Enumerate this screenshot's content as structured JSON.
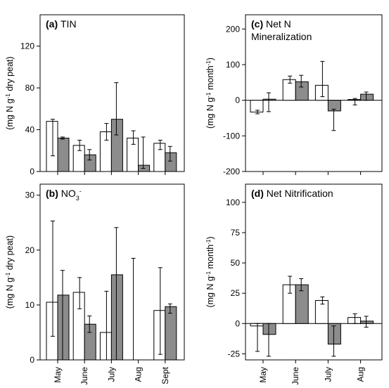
{
  "colors": {
    "white_bar": "#ffffff",
    "grey_bar": "#8c8c8c",
    "axis": "#000000"
  },
  "chart_data": [
    {
      "id": "a",
      "type": "bar",
      "letter": "(a)",
      "title": "TIN",
      "ylabel": "(mg N g-1 dry peat)",
      "ylim": [
        0,
        150
      ],
      "yticks": [
        0,
        40,
        80,
        120
      ],
      "categories": [
        "May",
        "June",
        "July",
        "Aug",
        "Sept"
      ],
      "series": [
        {
          "color": "white",
          "values": [
            48,
            25,
            38,
            32,
            27
          ],
          "err_low": [
            33,
            5,
            8,
            6,
            6
          ],
          "err_high": [
            2,
            5,
            8,
            7,
            3
          ]
        },
        {
          "color": "grey",
          "values": [
            32,
            16,
            50,
            6,
            18
          ],
          "err_low": [
            1,
            5,
            15,
            3,
            8
          ],
          "err_high": [
            1,
            5,
            35,
            27,
            6
          ]
        }
      ]
    },
    {
      "id": "b",
      "type": "bar",
      "letter": "(b)",
      "title": "NO3-",
      "ylabel": "(mg N g-1 dry peat)",
      "ylim": [
        0,
        32
      ],
      "yticks": [
        0,
        10,
        20,
        30
      ],
      "categories": [
        "May",
        "June",
        "July",
        "Aug",
        "Sept"
      ],
      "series": [
        {
          "color": "white",
          "values": [
            10.5,
            12.3,
            5.0,
            0,
            9.0
          ],
          "err_low": [
            6.2,
            3.0,
            5.0,
            0,
            8.0
          ],
          "err_high": [
            14.8,
            2.7,
            7.5,
            18.5,
            7.8
          ]
        },
        {
          "color": "grey",
          "values": [
            11.8,
            6.5,
            15.5,
            0,
            9.7
          ],
          "err_low": [
            11.8,
            1.5,
            15.5,
            0,
            1.2
          ],
          "err_high": [
            4.5,
            1.5,
            8.6,
            0,
            0.5
          ]
        }
      ]
    },
    {
      "id": "c",
      "type": "bar",
      "letter": "(c)",
      "title": "Net N",
      "title_line2": "Mineralization",
      "ylabel": "(mg N g-1 month-1)",
      "ylim": [
        -200,
        240
      ],
      "yticks": [
        -200,
        -100,
        0,
        100,
        200
      ],
      "categories": [
        "May",
        "June",
        "July",
        "Aug"
      ],
      "series": [
        {
          "color": "white",
          "values": [
            -33,
            58,
            42,
            2
          ],
          "err_low": [
            5,
            10,
            32,
            15
          ],
          "err_high": [
            5,
            10,
            67,
            3
          ]
        },
        {
          "color": "grey",
          "values": [
            3,
            52,
            -30,
            17
          ],
          "err_low": [
            35,
            15,
            55,
            17
          ],
          "err_high": [
            18,
            18,
            5,
            6
          ]
        }
      ]
    },
    {
      "id": "d",
      "type": "bar",
      "letter": "(d)",
      "title": "Net Nitrification",
      "ylabel": "(mg N g-1 month-1)",
      "ylim": [
        -30,
        115
      ],
      "yticks": [
        -25,
        0,
        25,
        50,
        75,
        100
      ],
      "categories": [
        "May",
        "June",
        "July",
        "Aug"
      ],
      "series": [
        {
          "color": "white",
          "values": [
            -2,
            32,
            19,
            5
          ],
          "err_low": [
            21,
            7,
            3,
            5
          ],
          "err_high": [
            2,
            7,
            3,
            3
          ]
        },
        {
          "color": "grey",
          "values": [
            -9,
            32,
            -17,
            2
          ],
          "err_low": [
            18,
            5,
            10,
            5
          ],
          "err_high": [
            9,
            5,
            15,
            4
          ]
        }
      ]
    }
  ]
}
